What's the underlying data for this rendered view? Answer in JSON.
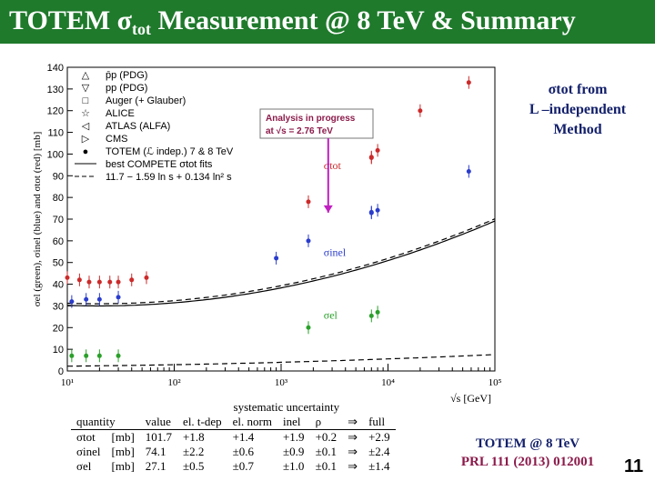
{
  "slide": {
    "title_main": "TOTEM σ",
    "title_sub": "tot",
    "title_rest": " Measurement @ 8 TeV & Summary",
    "page_number": "11",
    "accent_color": "#1f7a2c"
  },
  "note": {
    "line1": "σtot from",
    "line2": "L –independent",
    "line3": "Method"
  },
  "footer": {
    "line1": "TOTEM @ 8 TeV",
    "line2": "PRL 111 (2013) 012001"
  },
  "chart_data": {
    "type": "scatter",
    "title": "",
    "xlabel": "√s [GeV]",
    "ylabel": "σel (green), σinel (blue) and σtot (red) [mb]",
    "xscale": "log",
    "xlim": [
      10,
      100000
    ],
    "ylim": [
      0,
      140
    ],
    "x_ticks": [
      "10¹",
      "10²",
      "10³",
      "10⁴",
      "10⁵"
    ],
    "y_ticks": [
      0,
      10,
      20,
      30,
      40,
      50,
      60,
      70,
      80,
      90,
      100,
      110,
      120,
      130,
      140
    ],
    "legend_position": "top-left",
    "legend": [
      "p̄p (PDG)",
      "pp (PDG)",
      "Auger (+ Glauber)",
      "ALICE",
      "ATLAS (ALFA)",
      "CMS",
      "TOTEM (ℒ indep.)  7 & 8 TeV",
      "best COMPETE σtot fits",
      "11.7 − 1.59 ln s + 0.134 ln² s"
    ],
    "annotation": {
      "line1": "Analysis in progress",
      "line2": "at √s = 2.76 TeV",
      "x": 2760
    },
    "curve_labels": {
      "tot": "σtot",
      "inel": "σinel",
      "el": "σel"
    },
    "series": [
      {
        "name": "σtot",
        "color": "#cc2a2a",
        "points": [
          [
            10,
            43
          ],
          [
            13,
            42
          ],
          [
            16,
            41
          ],
          [
            20,
            41
          ],
          [
            25,
            41
          ],
          [
            30,
            41
          ],
          [
            40,
            42
          ],
          [
            55,
            43
          ],
          [
            1800,
            78
          ],
          [
            7000,
            98.6
          ],
          [
            7000,
            98.3
          ],
          [
            8000,
            101.7
          ],
          [
            20000,
            120
          ],
          [
            57000,
            133
          ]
        ]
      },
      {
        "name": "σinel",
        "color": "#2a3ccc",
        "points": [
          [
            11,
            32
          ],
          [
            15,
            33
          ],
          [
            20,
            33
          ],
          [
            30,
            34
          ],
          [
            900,
            52
          ],
          [
            1800,
            60
          ],
          [
            7000,
            73.2
          ],
          [
            7000,
            72.9
          ],
          [
            8000,
            74.1
          ],
          [
            57000,
            92
          ]
        ]
      },
      {
        "name": "σel",
        "color": "#2aa02a",
        "points": [
          [
            11,
            7
          ],
          [
            15,
            7
          ],
          [
            20,
            7
          ],
          [
            30,
            7
          ],
          [
            1800,
            20
          ],
          [
            7000,
            25.4
          ],
          [
            8000,
            27.1
          ]
        ]
      }
    ],
    "summary_table": {
      "header_top": [
        "",
        "",
        "systematic uncertainty"
      ],
      "header": [
        "quantity",
        "value",
        "el. t-dep",
        "el. norm",
        "inel",
        "ρ",
        "⇒",
        "full"
      ],
      "rows": [
        [
          "σtot",
          "[mb]",
          "101.7",
          "+1.8",
          "+1.4",
          "+1.9",
          "+0.2",
          "⇒",
          "+2.9"
        ],
        [
          "σinel",
          "[mb]",
          "74.1",
          "±2.2",
          "±0.6",
          "±0.9",
          "±0.1",
          "⇒",
          "±2.4"
        ],
        [
          "σel",
          "[mb]",
          "27.1",
          "±0.5",
          "±0.7",
          "±1.0",
          "±0.1",
          "⇒",
          "±1.4"
        ]
      ]
    }
  }
}
